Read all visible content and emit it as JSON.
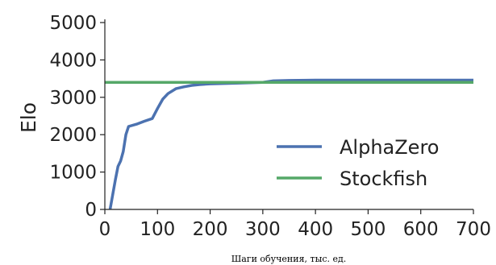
{
  "chart_data": {
    "type": "line",
    "title": "",
    "xlabel": "Шаги обучения, тыс. ед.",
    "ylabel": "Elo",
    "xlim": [
      0,
      700
    ],
    "ylim": [
      0,
      5000
    ],
    "xticks": [
      0,
      100,
      200,
      300,
      400,
      500,
      600,
      700
    ],
    "yticks": [
      0,
      1000,
      2000,
      3000,
      4000,
      5000
    ],
    "xtick_labels": [
      "0",
      "100",
      "200",
      "300",
      "400",
      "500",
      "600",
      "700"
    ],
    "ytick_labels": [
      "0",
      "1000",
      "2000",
      "3000",
      "4000",
      "5000"
    ],
    "grid": false,
    "legend_position": "lower-right",
    "series": [
      {
        "name": "AlphaZero",
        "color": "#4c72b0",
        "x": [
          10,
          15,
          20,
          25,
          30,
          35,
          40,
          45,
          60,
          75,
          90,
          100,
          110,
          120,
          135,
          150,
          165,
          180,
          200,
          250,
          300,
          320,
          350,
          400,
          450,
          500,
          550,
          600,
          650,
          700
        ],
        "y": [
          0,
          400,
          800,
          1150,
          1300,
          1550,
          2000,
          2220,
          2280,
          2360,
          2430,
          2700,
          2950,
          3100,
          3230,
          3280,
          3320,
          3340,
          3360,
          3380,
          3400,
          3440,
          3450,
          3460,
          3460,
          3460,
          3460,
          3460,
          3460,
          3460
        ]
      },
      {
        "name": "Stockfish",
        "color": "#55a868",
        "x": [
          0,
          700
        ],
        "y": [
          3400,
          3400
        ]
      }
    ]
  }
}
